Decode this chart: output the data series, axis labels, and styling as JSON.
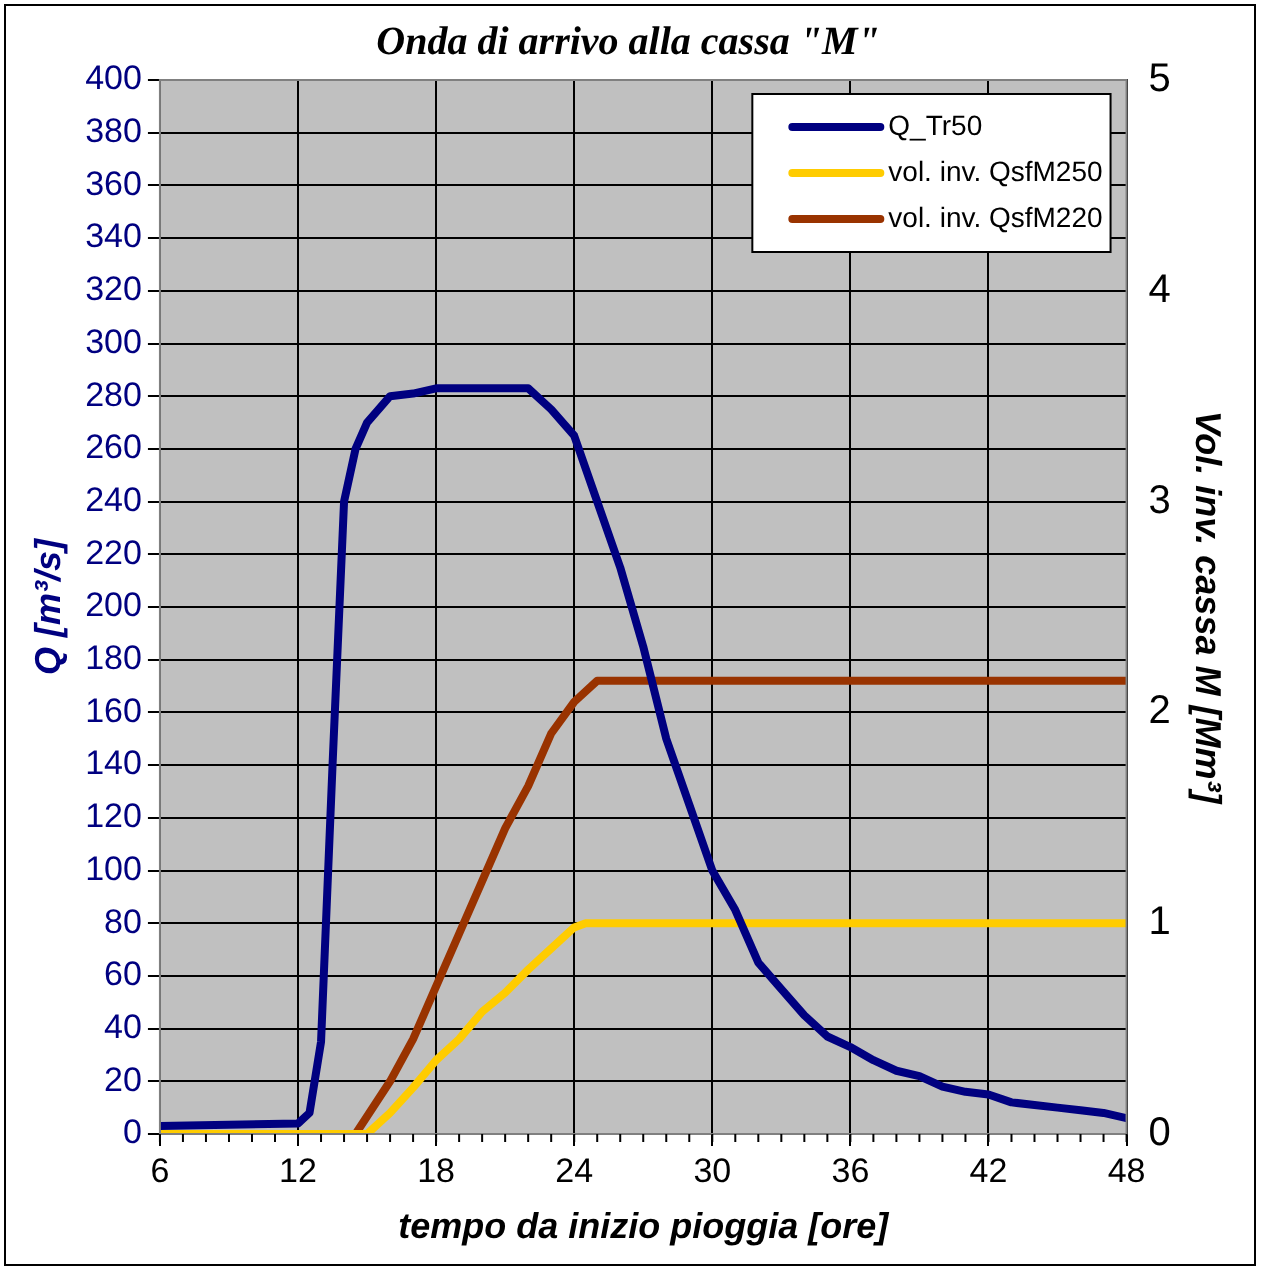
{
  "chart_data": {
    "type": "line",
    "title": "Onda di arrivo alla cassa \"M\"",
    "xlabel": "tempo da inizio pioggia [ore]",
    "ylabel": "Q [m³/s]",
    "y2label": "Vol. inv. cassa M [Mm³]",
    "xlim": [
      6,
      48
    ],
    "xticks": [
      6,
      12,
      18,
      24,
      30,
      36,
      42,
      48
    ],
    "ylim": [
      0,
      400
    ],
    "yticks": [
      0,
      20,
      40,
      60,
      80,
      100,
      120,
      140,
      160,
      180,
      200,
      220,
      240,
      260,
      280,
      300,
      320,
      340,
      360,
      380,
      400
    ],
    "y2lim": [
      0,
      5
    ],
    "y2ticks": [
      0,
      1,
      2,
      3,
      4,
      5
    ],
    "grid": true,
    "legend": "top right",
    "marker": "none",
    "line_style": "solid",
    "series": [
      {
        "name": "Q_Tr50",
        "color": "#000080",
        "x": [
          6,
          12,
          12.5,
          13,
          13.5,
          14,
          14.5,
          15,
          16,
          17,
          18,
          22,
          23,
          24,
          25,
          26,
          27,
          28,
          29,
          30,
          31,
          32,
          33,
          34,
          35,
          36,
          37,
          38,
          39,
          40,
          41,
          42,
          43,
          44,
          45,
          46,
          47,
          48
        ],
        "values": [
          3,
          4,
          8,
          35,
          140,
          240,
          260,
          270,
          280,
          281,
          283,
          283,
          275,
          265,
          240,
          215,
          185,
          150,
          125,
          100,
          85,
          65,
          55,
          45,
          37,
          33,
          28,
          24,
          22,
          18,
          16,
          15,
          12,
          11,
          10,
          9,
          8,
          6
        ]
      },
      {
        "name": "vol. inv. QsfM250",
        "color": "#ffcc00",
        "axis": "y2",
        "x": [
          6,
          15,
          16,
          17,
          18,
          19,
          20,
          21,
          22,
          23,
          24,
          24.5,
          48
        ],
        "values": [
          0,
          0,
          0.1,
          0.22,
          0.35,
          0.45,
          0.58,
          0.67,
          0.78,
          0.88,
          0.98,
          1,
          1
        ]
      },
      {
        "name": "vol. inv. QsfM220",
        "color": "#993300",
        "axis": "y2",
        "x": [
          6,
          14.5,
          16,
          17,
          18,
          19,
          20,
          21,
          22,
          23,
          24,
          25,
          25.5,
          48
        ],
        "values": [
          0,
          0,
          0.25,
          0.45,
          0.7,
          0.95,
          1.2,
          1.45,
          1.65,
          1.9,
          2.05,
          2.15,
          2.15,
          2.15
        ]
      }
    ]
  }
}
